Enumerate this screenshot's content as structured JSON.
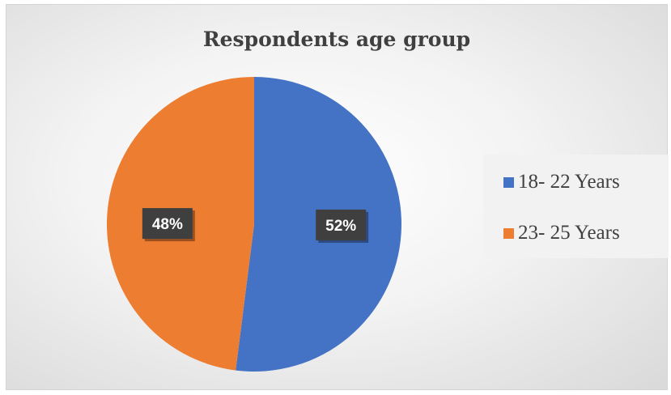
{
  "chart_data": {
    "type": "pie",
    "title": "Respondents age group",
    "categories": [
      "18- 22 Years",
      "23- 25 Years"
    ],
    "values": [
      52,
      48
    ],
    "data_labels": [
      "52%",
      "48%"
    ],
    "colors": [
      "#4472c4",
      "#ed7d31"
    ],
    "legend_position": "right"
  }
}
